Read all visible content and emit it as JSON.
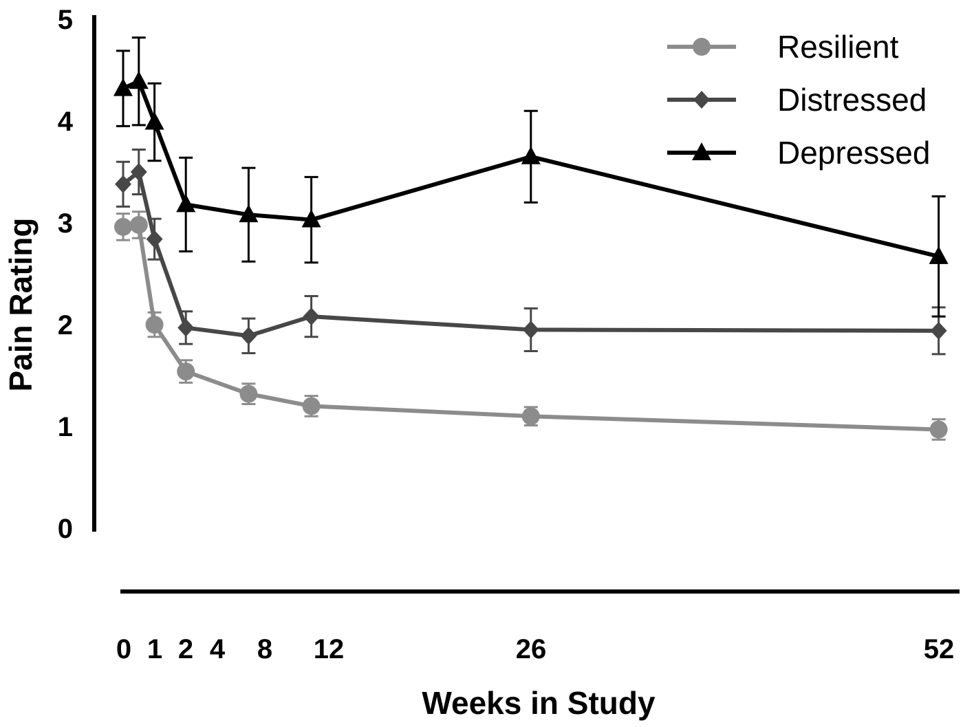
{
  "chart_data": {
    "type": "line",
    "title": "",
    "xlabel": "Weeks in Study",
    "ylabel": "Pain Rating",
    "x": [
      0,
      1,
      2,
      4,
      8,
      12,
      26,
      52
    ],
    "x_tick_labels": [
      "0",
      "1",
      "2",
      "4",
      "8",
      "12",
      "26",
      "52"
    ],
    "y_tick_labels": [
      "0",
      "1",
      "2",
      "3",
      "4",
      "5"
    ],
    "xlim": [
      0,
      52
    ],
    "ylim": [
      0,
      5
    ],
    "grid": false,
    "legend_position": "top-right",
    "series": [
      {
        "name": "Resilient",
        "color": "#8c8c8c",
        "marker": "circle",
        "values": [
          2.96,
          2.98,
          2.0,
          1.54,
          1.32,
          1.2,
          1.1,
          0.97
        ],
        "errors": [
          0.13,
          0.13,
          0.12,
          0.11,
          0.1,
          0.1,
          0.09,
          0.1
        ]
      },
      {
        "name": "Distressed",
        "color": "#474747",
        "marker": "diamond",
        "values": [
          3.38,
          3.5,
          2.84,
          1.97,
          1.89,
          2.08,
          1.95,
          1.94
        ],
        "errors": [
          0.22,
          0.22,
          0.2,
          0.16,
          0.17,
          0.2,
          0.21,
          0.23
        ]
      },
      {
        "name": "Depressed",
        "color": "#000000",
        "marker": "triangle",
        "values": [
          4.32,
          4.39,
          3.99,
          3.18,
          3.08,
          3.03,
          3.65,
          2.67
        ],
        "errors": [
          0.37,
          0.43,
          0.38,
          0.46,
          0.46,
          0.42,
          0.45,
          0.59
        ]
      }
    ]
  }
}
